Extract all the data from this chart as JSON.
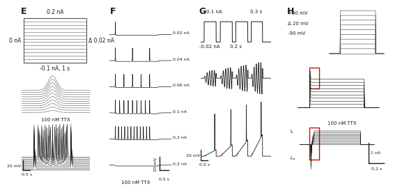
{
  "panel_labels": [
    "E",
    "F",
    "G",
    "H"
  ],
  "dark": "#1a1a1a",
  "gray": "#555555",
  "light_gray": "#aaaaaa",
  "red": "#cc1100",
  "panel_E_top_labels": [
    "0.2 nA",
    "0 nA",
    "Δ 0.02 nA",
    "-0.1 nA, 1 s"
  ],
  "panel_F_labels": [
    "0.02 nA",
    "0.04 nA",
    "0.06 nA",
    "0.1 nA",
    "0.2 nA",
    "0.2 nA"
  ],
  "panel_F_bottom": "100 nM TTX",
  "panel_G_labels": [
    "0.1 nA",
    "0.3 s",
    "-0.02 nA",
    "0.2 s"
  ],
  "panel_H_top_labels": [
    "+90 mV",
    "Δ 20 mV",
    "-90 mV"
  ],
  "panel_H_mid_label": "100 nM TTX",
  "panel_H_bot_labels": [
    "Iₖ",
    "Iₙₐ",
    "1 nA",
    "0.2 s"
  ],
  "scale_20mV": "20 mV",
  "scale_05s": "0.5 s"
}
